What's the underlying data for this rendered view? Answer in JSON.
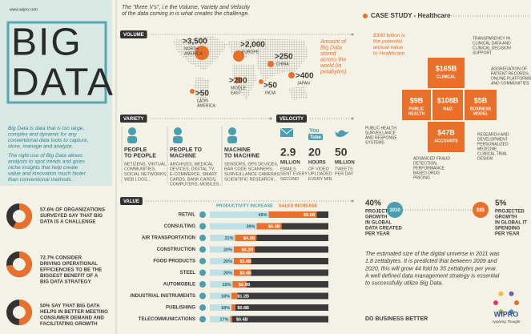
{
  "brand": {
    "url": "www.wipro.com",
    "title_1": "BIG",
    "title_2": "DATA"
  },
  "intro": {
    "p1": [
      "Big Data is data that is too large,",
      "complex and dynamic for any",
      "conventional data tools to capture,",
      "store, manage and analyze."
    ],
    "p2": [
      "The right use of Big Data allows",
      "analysts to spot trends and gives",
      "niche insights that help create",
      "value and innovation much faster",
      "than conventional methods."
    ]
  },
  "stats": [
    {
      "value": 57.6,
      "text": [
        "57.6% OF ORGANIZATIONS",
        "SURVEYED SAY THAT BIG",
        "DATA IS A CHALLENGE"
      ]
    },
    {
      "value": 72.7,
      "text": [
        "72.7% CONSIDER",
        "DRIVING OPERATIONAL",
        "EFFICIENCIES TO BE THE",
        "BIGGEST BENEFIT OF A",
        "BIG DATA STRATEGY"
      ]
    },
    {
      "value": 50,
      "text": [
        "50% SAY THAT BIG DATA",
        "HELPS IN BETTER MEETING",
        "CONSUMER DEMAND AND",
        "FACILITATING GROWTH"
      ]
    }
  ],
  "header": [
    "The \"three V's\", i.e the Volume, Variety and Velocity",
    "of the data coming in is what creates the challenge."
  ],
  "volume": {
    "title": "VOLUME",
    "note": [
      "Amount of",
      "Big Data",
      "stored",
      "across the",
      "world (in",
      "petabytes)"
    ],
    "regions": [
      {
        "value": ">3,500",
        "name": [
          "NORTH",
          "AMERICA"
        ]
      },
      {
        "value": ">2,000",
        "name": [
          "EUROPE"
        ]
      },
      {
        "value": ">250",
        "name": [
          "CHINA"
        ]
      },
      {
        "value": ">400",
        "name": [
          "JAPAN"
        ]
      },
      {
        "value": ">50",
        "name": [
          "LATIN",
          "AMERICA"
        ]
      },
      {
        "value": ">200",
        "name": [
          "MIDDLE",
          "EAST"
        ]
      },
      {
        "value": ">50",
        "name": [
          "INDIA"
        ]
      }
    ]
  },
  "variety": {
    "title": "VARIETY",
    "items": [
      {
        "title": [
          "PEOPLE",
          "TO PEOPLE"
        ],
        "text": [
          "NETIZENS, VIRTUAL",
          "COMMUNITIES,",
          "SOCIAL NETWORKS,",
          "WEB LOGS..."
        ]
      },
      {
        "title": [
          "PEOPLE TO",
          "MACHINE"
        ],
        "text": [
          "ARCHIVES, MEDICAL",
          "DEVICES, DIGITAL TV,",
          "E-COMMERCE, SMART",
          "CARDS, BANK CARDS,",
          "COMPUTERS, MOBILES..."
        ]
      },
      {
        "title": [
          "MACHINE",
          "TO MACHINE"
        ],
        "text": [
          "SENSORS, GPS DEVICES,",
          "BAR CODE SCANNERS,",
          "SURVEILLANCE CAMERAS,",
          "SCIENTIFIC RESEARCH..."
        ]
      }
    ]
  },
  "velocity": {
    "title": "VELOCITY",
    "youtube": [
      "You",
      "Tube"
    ],
    "items": [
      {
        "figure": "2.9",
        "unit": "MILLION",
        "text": [
          "EMAILS",
          "SENT EVERY",
          "SECOND"
        ]
      },
      {
        "figure": "20",
        "unit": "HOURS",
        "text": [
          "OF VIDEO",
          "UPLOADED",
          "EVERY MIN"
        ]
      },
      {
        "figure": "50",
        "unit": "MILLION",
        "text": [
          "TWEETS",
          "PER DAY"
        ]
      }
    ]
  },
  "case_study": {
    "title": "CASE STUDY - Healthcare",
    "note": [
      "$300 billion is",
      "the potential",
      "annual value",
      "to Healthcare"
    ],
    "blocks": [
      {
        "value": "$165B",
        "label": [
          "CLINICAL"
        ]
      },
      {
        "value": "$9B",
        "label": [
          "PUBLIC",
          "HEALTH"
        ]
      },
      {
        "value": "$108B",
        "label": [
          "R&D"
        ]
      },
      {
        "value": "$5B",
        "label": [
          "BUSINESS",
          "MODEL"
        ]
      },
      {
        "value": "$47B",
        "label": [
          "ACCOUNTS"
        ]
      }
    ],
    "annotations": [
      [
        "TRANSPARENCY IN",
        "CLINICAL DATA AND",
        "CLINICAL DECISION",
        "SUPPORT"
      ],
      [
        "AGGREGATION OF",
        "PATIENT RECORDS,",
        "ONLINE PLATFORMS",
        "AND COMMUNITIES"
      ],
      [
        "RESEARCH AND",
        "DEVELOPMENT",
        "PERSONALIZED",
        "MEDICINE",
        "CLINICAL TRIAL",
        "DESIGN"
      ],
      [
        "ADVANCED FRAUD",
        "DETECTION,",
        "PERFORMANCE",
        "BASED DRUG",
        "PRICING"
      ],
      [
        "PUBLIC HEALTH",
        "SURVEILLANCE",
        "AND RESPONSE",
        "SYSTEMS"
      ]
    ]
  },
  "value": {
    "title": "VALUE",
    "legend": [
      "PRODUCTIVITY INCREASE",
      "SALES INCREASE"
    ],
    "categories": [
      "RETAIL",
      "CONSULTING",
      "AIR TRANSPORTATION",
      "CONSTRUCTION",
      "FOOD PRODUCTS",
      "STEEL",
      "AUTOMOBILE",
      "INDUSTRIAL INSTRUMENTS",
      "PUBLISHING",
      "TELECOMMUNICATIONS"
    ],
    "productivity": [
      49,
      39,
      21,
      20,
      20,
      20,
      19,
      18,
      18,
      17
    ],
    "productivity_labels": [
      "49%",
      "39%",
      "21%",
      "20%",
      "20%",
      "20%",
      "19%",
      "18%",
      "18%",
      "17%"
    ],
    "sales": [
      9.6,
      5.0,
      4.3,
      4.2,
      3.4,
      3.4,
      2.8,
      1.2,
      0.8,
      0.4
    ],
    "sales_labels": [
      "$9.6B",
      "$5.0B",
      "$4.3B",
      "$4.2B",
      "$3.4B",
      "$3.4B",
      "$2.8B",
      "$1.2B",
      "$0.8B",
      "$0.4B"
    ]
  },
  "growth": [
    {
      "figure": "40%",
      "icon": "1010",
      "text": [
        "PROJECTED",
        "GROWTH",
        "IN GLOBAL",
        "DATA CREATED",
        "PER YEAR"
      ]
    },
    {
      "figure": "5%",
      "icon": "$$$",
      "text": [
        "PROJECTED",
        "GROWTH",
        "IN GLOBAL IT",
        "SPENDING",
        "PER YEAR"
      ]
    }
  ],
  "summary": [
    "The estimated size of the digital universe in 2011 was",
    "1.8 zettabytes. It is predicted that between 2009 and",
    "2020, this will grow 44 fold to 35 zettabytes per year.",
    "A well defined data management strategy is essential",
    "to successfully utilize Big Data."
  ],
  "footer": {
    "tagline": "DO BUSINESS BETTER",
    "logo": "WIPRO",
    "slogan": "Applying Thought"
  }
}
